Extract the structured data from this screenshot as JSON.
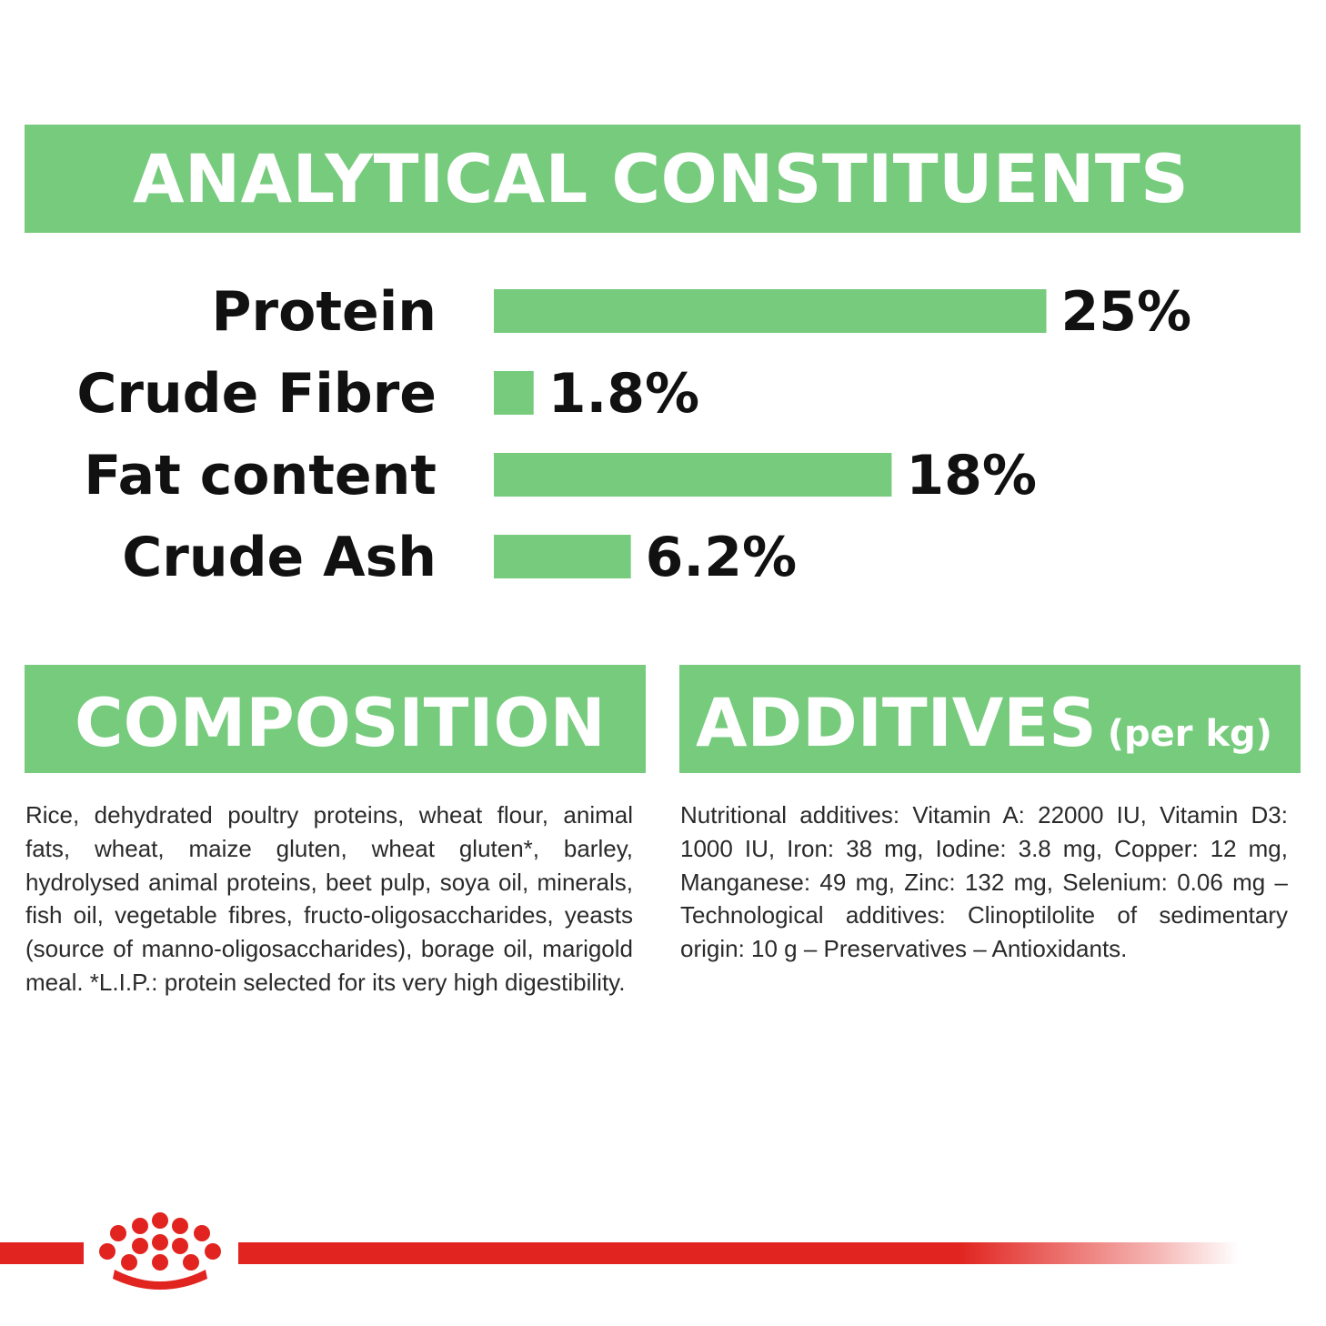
{
  "sections": {
    "analytical_title": "ANALYTICAL CONSTITUENTS",
    "composition_title": "COMPOSITION",
    "additives_title": "ADDITIVES",
    "additives_subtitle": "(per kg)"
  },
  "chart_data": {
    "type": "bar",
    "orientation": "horizontal",
    "categories": [
      "Protein",
      "Crude Fibre",
      "Fat content",
      "Crude Ash"
    ],
    "values": [
      25,
      1.8,
      18,
      6.2
    ],
    "value_labels": [
      "25%",
      "1.8%",
      "18%",
      "6.2%"
    ],
    "unit": "%",
    "bar_color": "#76cb7d"
  },
  "composition_text": "Rice, dehydrated poultry proteins, wheat flour, animal fats, wheat, maize gluten, wheat gluten*, barley, hydrolysed animal proteins, beet pulp, soya oil, minerals, fish oil, vegetable fibres, fructo-oligosaccharides, yeasts (source of manno-oligosaccharides), borage oil, marigold meal. *L.I.P.: protein selected for its very high digestibility.",
  "additives_text": "Nutritional additives: Vitamin A: 22000 IU, Vitamin D3: 1000 IU, Iron: 38 mg, Iodine: 3.8 mg, Copper: 12 mg, Manganese: 49 mg, Zinc: 132 mg, Selenium: 0.06 mg – Technological additives: Clinoptilolite of sedimentary origin: 10 g – Preservatives – Antioxidants.",
  "colors": {
    "banner_green": "#76cb7d",
    "brand_red": "#e1241f"
  },
  "icons": {
    "logo": "crown-logo"
  }
}
